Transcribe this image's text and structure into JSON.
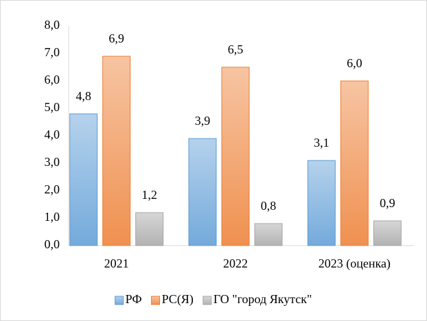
{
  "chart_data": {
    "type": "bar",
    "categories": [
      "2021",
      "2022",
      "2023 (оценка)"
    ],
    "series": [
      {
        "name": "РФ",
        "color": "#5b9bd5",
        "values": [
          4.8,
          3.9,
          3.1
        ],
        "value_labels": [
          "4,8",
          "3,9",
          "3,1"
        ]
      },
      {
        "name": "РС(Я)",
        "color": "#ed7d31",
        "values": [
          6.9,
          6.5,
          6.0
        ],
        "value_labels": [
          "6,9",
          "6,5",
          "6,0"
        ]
      },
      {
        "name": "ГО \"город Якутск\"",
        "color": "#a5a5a5",
        "values": [
          1.2,
          0.8,
          0.9
        ],
        "value_labels": [
          "1,2",
          "0,8",
          "0,9"
        ]
      }
    ],
    "ylim": [
      0,
      8
    ],
    "yticks": [
      {
        "value": 0,
        "label": "0,0"
      },
      {
        "value": 1,
        "label": "1,0"
      },
      {
        "value": 2,
        "label": "2,0"
      },
      {
        "value": 3,
        "label": "3,0"
      },
      {
        "value": 4,
        "label": "4,0"
      },
      {
        "value": 5,
        "label": "5,0"
      },
      {
        "value": 6,
        "label": "6,0"
      },
      {
        "value": 7,
        "label": "7,0"
      },
      {
        "value": 8,
        "label": "8,0"
      }
    ],
    "grid": false,
    "legend": "bottom"
  }
}
